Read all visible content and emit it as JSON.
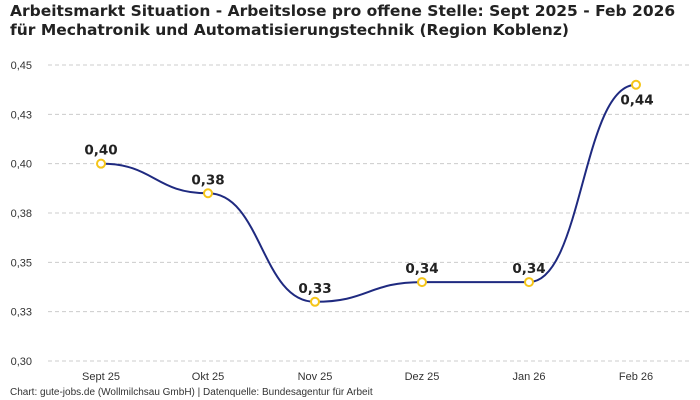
{
  "title": "Arbeitsmarkt Situation - Arbeitslose pro offene Stelle: Sept 2025 - Feb 2026 für Mechatronik und Automatisierungstechnik (Region Koblenz)",
  "footer": "Chart: gute-jobs.de (Wollmilchsau GmbH) | Datenquelle: Bundesagentur für Arbeit",
  "chart_data": {
    "type": "line",
    "title": "Arbeitsmarkt Situation - Arbeitslose pro offene Stelle: Sept 2025 - Feb 2026 für Mechatronik und Automatisierungstechnik (Region Koblenz)",
    "categories": [
      "Sept 25",
      "Okt 25",
      "Nov 25",
      "Dez 25",
      "Jan 26",
      "Feb 26"
    ],
    "series": [
      {
        "values": [
          0.4,
          0.385,
          0.33,
          0.34,
          0.34,
          0.44
        ],
        "labels": [
          "0,40",
          "0,38",
          "0,33",
          "0,34",
          "0,34",
          "0,44"
        ]
      }
    ],
    "y_ticks": [
      0.3,
      0.325,
      0.35,
      0.375,
      0.4,
      0.425,
      0.45
    ],
    "y_tick_labels": [
      "0,30",
      "0,33",
      "0,35",
      "0,38",
      "0,40",
      "0,43",
      "0,45"
    ],
    "ylim": [
      0.3,
      0.45
    ],
    "xlabel": "",
    "ylabel": "",
    "grid": true,
    "smooth": true,
    "colors": {
      "line": "#1f2a80",
      "marker_stroke": "#f5c518",
      "marker_fill": "#ffffff",
      "grid": "#cccccc",
      "label": "#222222"
    }
  }
}
